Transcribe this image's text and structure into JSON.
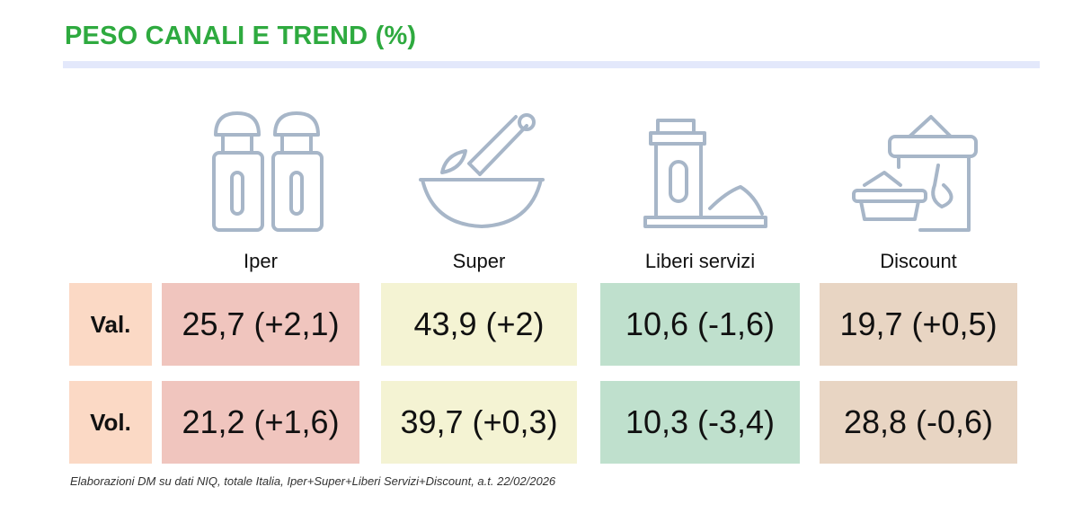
{
  "title": "PESO CANALI E TREND (%)",
  "columns": [
    {
      "label": "Iper",
      "icon": "salt-pepper-shakers-icon",
      "color": "#f0c5be"
    },
    {
      "label": "Super",
      "icon": "mortar-pestle-icon",
      "color": "#f4f3d3"
    },
    {
      "label": "Liberi servizi",
      "icon": "spice-jar-icon",
      "color": "#bfe0cd"
    },
    {
      "label": "Discount",
      "icon": "spice-containers-icon",
      "color": "#e8d5c3"
    }
  ],
  "rows": [
    {
      "label": "Val.",
      "values": [
        "25,7 (+2,1)",
        "43,9 (+2)",
        "10,6 (-1,6)",
        "19,7 (+0,5)"
      ]
    },
    {
      "label": "Vol.",
      "values": [
        "21,2 (+1,6)",
        "39,7 (+0,3)",
        "10,3 (-3,4)",
        "28,8 (-0,6)"
      ]
    }
  ],
  "row_label_color": "#fbd9c5",
  "title_color": "#2eaa3f",
  "footnote": "Elaborazioni DM su dati NIQ, totale Italia, Iper+Super+Liberi Servizi+Discount, a.t. 22/02/2026"
}
